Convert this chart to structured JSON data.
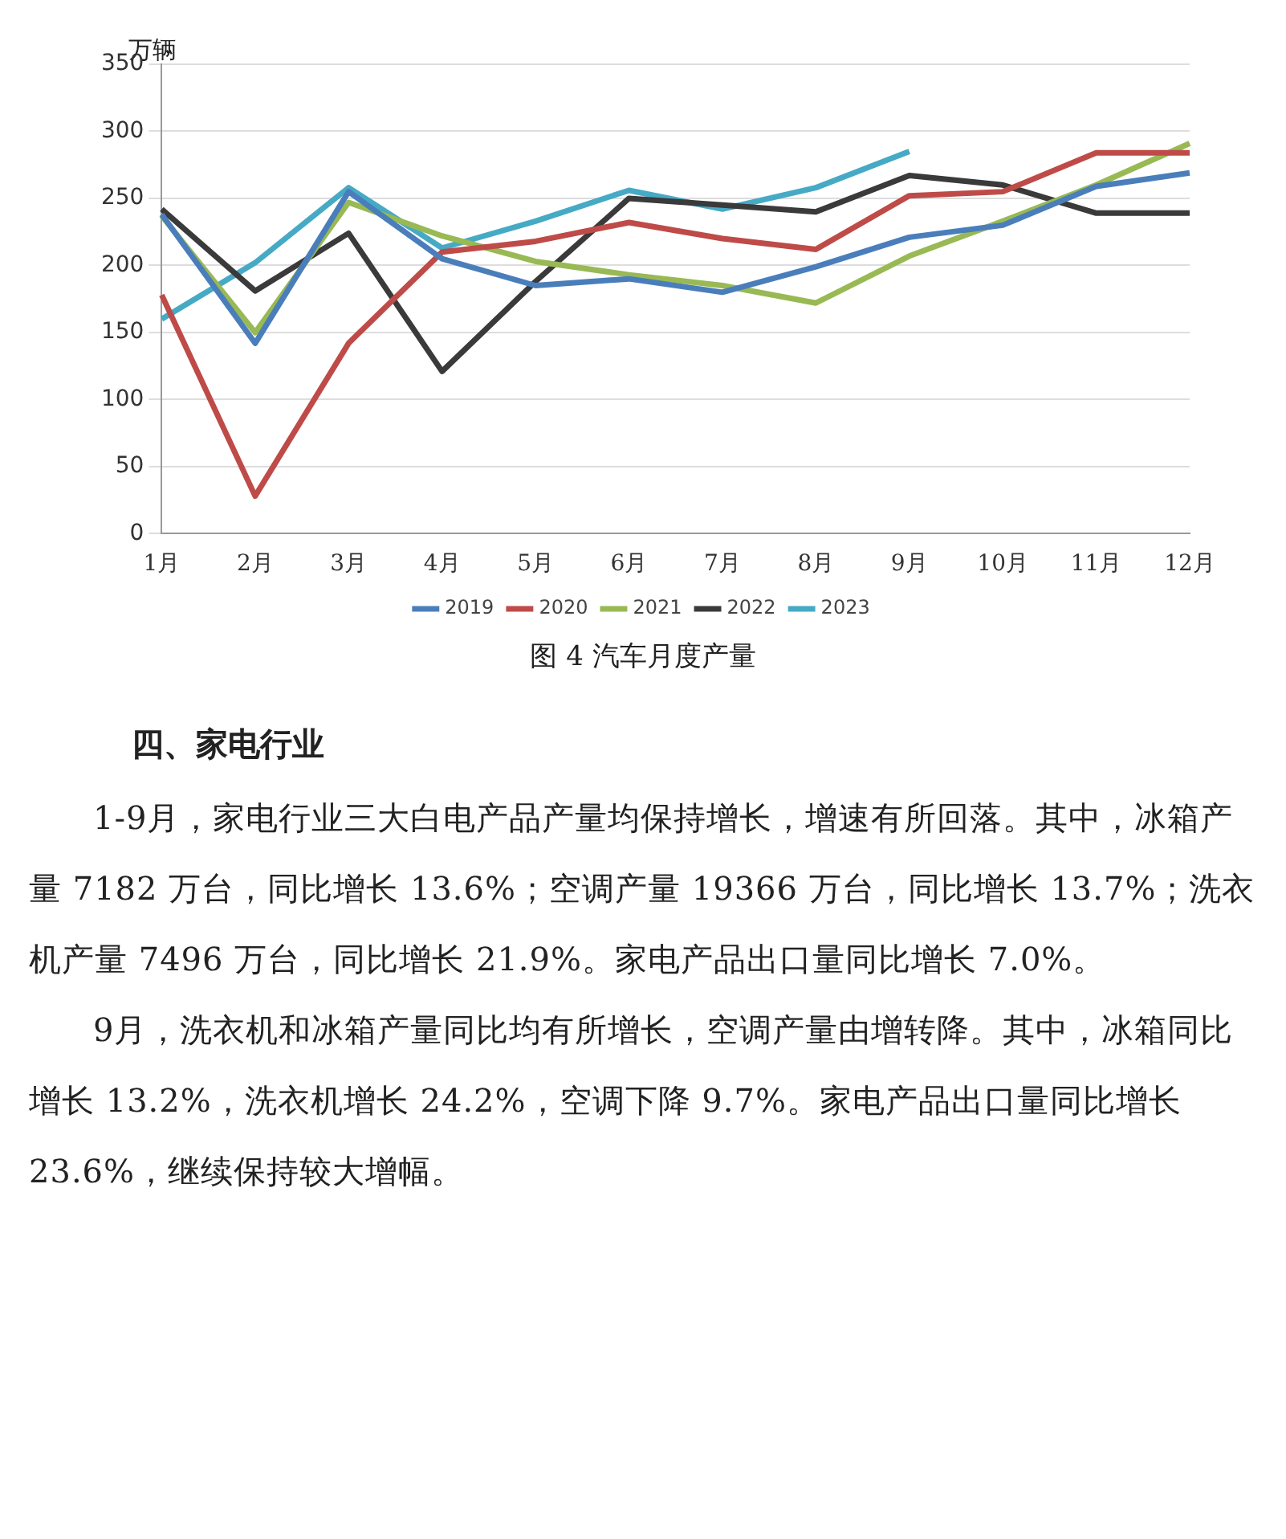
{
  "chart_data": {
    "type": "line",
    "title": "图 4 汽车月度产量",
    "ylabel": "万辆",
    "categories": [
      "1月",
      "2月",
      "3月",
      "4月",
      "5月",
      "6月",
      "7月",
      "8月",
      "9月",
      "10月",
      "11月",
      "12月"
    ],
    "series": [
      {
        "name": "2019",
        "color": "#4a7ebb",
        "values": [
          238,
          142,
          255,
          205,
          185,
          190,
          180,
          199,
          221,
          230,
          259,
          269
        ]
      },
      {
        "name": "2020",
        "color": "#be4b48",
        "values": [
          178,
          28,
          142,
          210,
          218,
          232,
          220,
          212,
          252,
          255,
          284,
          284
        ]
      },
      {
        "name": "2021",
        "color": "#98b954",
        "values": [
          237,
          150,
          247,
          222,
          203,
          193,
          185,
          172,
          207,
          233,
          260,
          291
        ]
      },
      {
        "name": "2022",
        "color": "#3a3a3a",
        "values": [
          242,
          181,
          224,
          121,
          188,
          250,
          245,
          240,
          267,
          260,
          239,
          239
        ]
      },
      {
        "name": "2023",
        "color": "#46aac5",
        "values": [
          160,
          202,
          258,
          213,
          233,
          256,
          242,
          258,
          285,
          null,
          null,
          null
        ]
      }
    ],
    "ylim": [
      0,
      350
    ],
    "yticks": [
      0,
      50,
      100,
      150,
      200,
      250,
      300,
      350
    ],
    "grid": "y",
    "legend": "bottom",
    "marker": "none",
    "line_style": "solid",
    "annotations": [
      "四、家电行业",
      "1-9月，家电行业三大白电产品产量均保持增长，增速有所回落。其中，冰箱产量 7182 万台，同比增长 13.6%；空调产量 19366 万台，同比增长 13.7%；洗衣机产量 7496 万台，同比增长 21.9%。家电产品出口量同比增长 7.0%。",
      "9月，洗衣机和冰箱产量同比均有所增长，空调产量由增转降。其中，冰箱同比增长 13.2%，洗衣机增长 24.2%，空调下降 9.7%。家电产品出口量同比增长 23.6%，继续保持较大增幅。"
    ]
  }
}
